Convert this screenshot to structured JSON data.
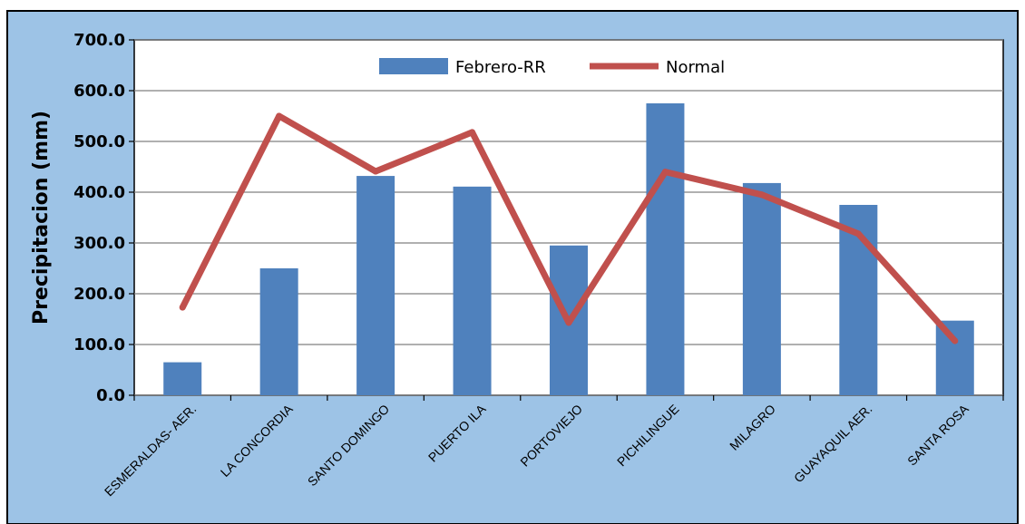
{
  "chart_data": {
    "type": "bar",
    "categories": [
      "ESMERALDAS- AER.",
      "LA CONCORDIA",
      "SANTO DOMINGO",
      "PUERTO ILA",
      "PORTOVIEJO",
      "PICHILINGUE",
      "MILAGRO",
      "GUAYAQUIL AER.",
      "SANTA ROSA"
    ],
    "series": [
      {
        "name": "Febrero-RR",
        "kind": "bar",
        "values": [
          65,
          250,
          432,
          411,
          295,
          575,
          418,
          375,
          147
        ],
        "color": "#4F81BD"
      },
      {
        "name": "Normal",
        "kind": "line",
        "values": [
          173,
          550,
          441,
          518,
          143,
          440,
          395,
          318,
          107
        ],
        "color": "#C0504D"
      }
    ],
    "title": "",
    "xlabel": "",
    "ylabel": "Precipitacion (mm)",
    "ylim": [
      0,
      700
    ],
    "yticks": [
      "0.0",
      "100.0",
      "200.0",
      "300.0",
      "400.0",
      "500.0",
      "600.0",
      "700.0"
    ],
    "grid": true,
    "legend": "top-center",
    "colors": {
      "background": "#9DC3E6",
      "plot_area": "#FFFFFF",
      "gridlines": "#808080"
    }
  }
}
